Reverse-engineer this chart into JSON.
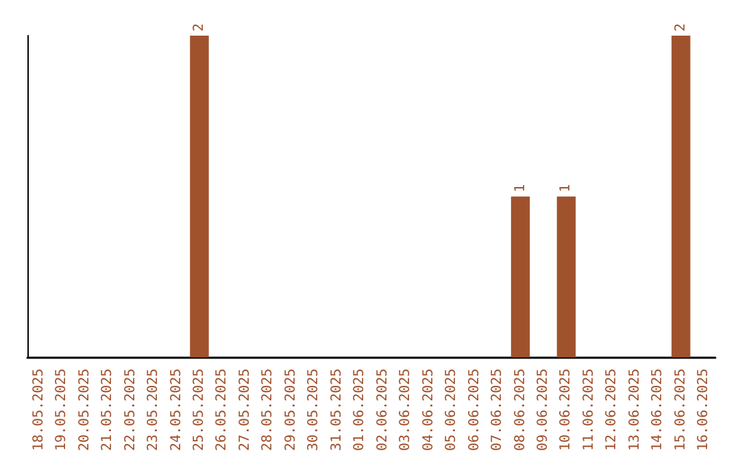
{
  "chart_data": {
    "type": "bar",
    "categories": [
      "18.05.2025",
      "19.05.2025",
      "20.05.2025",
      "21.05.2025",
      "22.05.2025",
      "23.05.2025",
      "24.05.2025",
      "25.05.2025",
      "26.05.2025",
      "27.05.2025",
      "28.05.2025",
      "29.05.2025",
      "30.05.2025",
      "31.05.2025",
      "01.06.2025",
      "02.06.2025",
      "03.06.2025",
      "04.06.2025",
      "05.06.2025",
      "06.06.2025",
      "07.06.2025",
      "08.06.2025",
      "09.06.2025",
      "10.06.2025",
      "11.06.2025",
      "12.06.2025",
      "13.06.2025",
      "14.06.2025",
      "15.06.2025",
      "16.06.2025"
    ],
    "values": [
      0,
      0,
      0,
      0,
      0,
      0,
      0,
      2,
      0,
      0,
      0,
      0,
      0,
      0,
      0,
      0,
      0,
      0,
      0,
      0,
      0,
      1,
      0,
      1,
      0,
      0,
      0,
      0,
      2,
      0
    ],
    "value_labels": [
      null,
      null,
      null,
      null,
      null,
      null,
      null,
      "2",
      null,
      null,
      null,
      null,
      null,
      null,
      null,
      null,
      null,
      null,
      null,
      null,
      null,
      "1",
      null,
      "1",
      null,
      null,
      null,
      null,
      "2",
      null
    ],
    "color": "#a0522d",
    "ylim": [
      0,
      2
    ],
    "tick_labels": "x",
    "grid": false
  }
}
